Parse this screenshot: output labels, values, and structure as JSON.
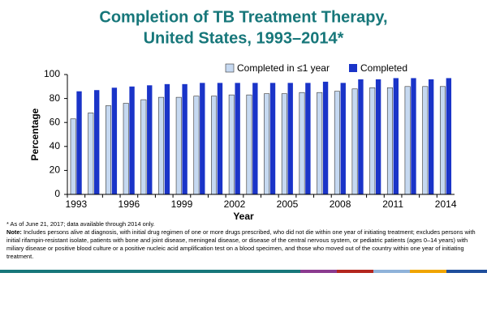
{
  "chart_data": {
    "type": "bar",
    "title_lines": [
      "Completion of TB Treatment Therapy,",
      "United States, 1993–2014*"
    ],
    "x_label": "Year",
    "y_label": "Percentage",
    "categories": [
      "1993",
      null,
      null,
      "1996",
      null,
      null,
      "1999",
      null,
      null,
      "2002",
      null,
      null,
      "2005",
      null,
      null,
      "2008",
      null,
      null,
      "2011",
      null,
      null,
      "2014"
    ],
    "series": [
      {
        "name": "Completed in ≤1 year",
        "color": "#c6d9f1",
        "values": [
          63,
          68,
          74,
          76,
          79,
          81,
          81,
          82,
          82,
          83,
          83,
          84,
          84,
          85,
          85,
          86,
          88,
          89,
          89,
          90,
          90,
          90
        ]
      },
      {
        "name": "Completed",
        "color": "#1a34c8",
        "values": [
          86,
          87,
          89,
          90,
          91,
          92,
          92,
          93,
          93,
          93,
          93,
          93,
          93,
          93,
          94,
          93,
          96,
          96,
          97,
          97,
          96,
          97
        ]
      }
    ],
    "ylim": [
      0,
      100
    ],
    "yticks": [
      0,
      20,
      40,
      60,
      80,
      100
    ],
    "grid": false,
    "legend": "top-right",
    "footnote": "*  As of June 21, 2017;  data available through 2014 only.",
    "note_label": "Note:",
    "note": "Includes persons alive at diagnosis, with initial drug regimen of one or more drugs prescribed, who did not die within one year of initiating treatment; excludes persons with initial rifampin-resistant isolate, patients with bone and joint disease, meningeal disease, or disease of the central nervous system, or pediatric patients (ages 0–14 years) with miliary disease or positive blood culture or a positive nucleic acid amplification test on a blood specimen, and those who moved out of the country within one year of initiating treatment."
  }
}
